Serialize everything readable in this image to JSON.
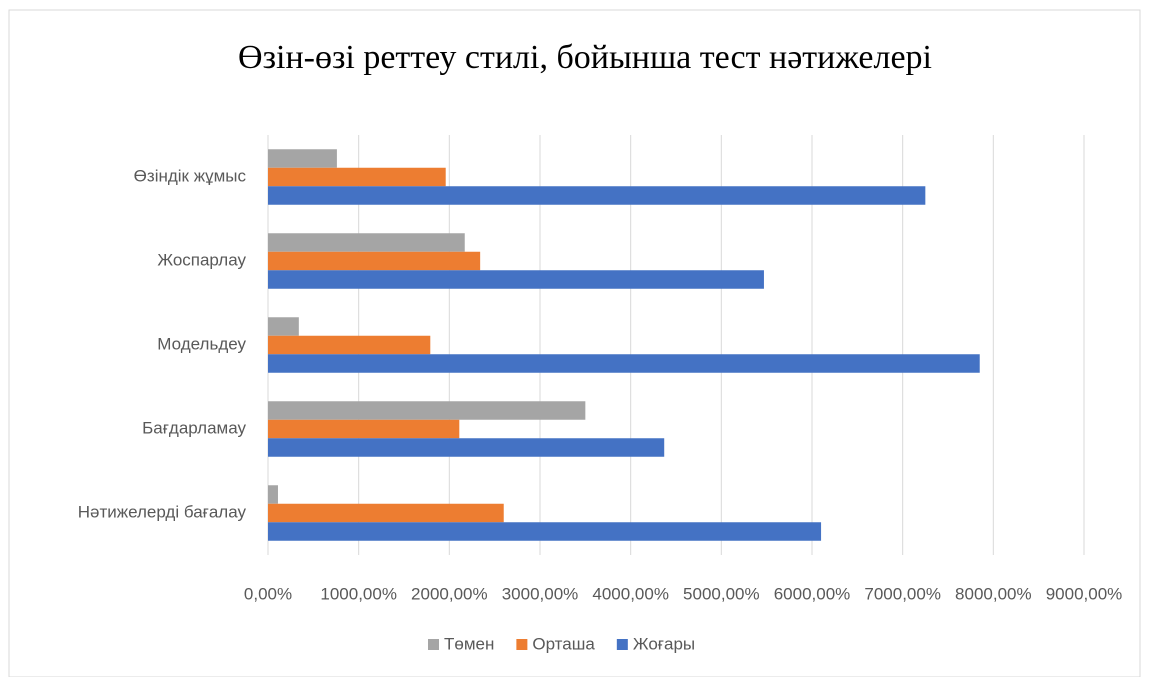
{
  "chart_data": {
    "type": "barh",
    "title": "Өзін-өзі реттеу стилі,  бойынша тест нәтижелері",
    "categories": [
      "Өзіндік жұмыс",
      "Жоспарлау",
      "Модельдеу",
      "Бағдарламау",
      "Нәтижелерді бағалау"
    ],
    "series": [
      {
        "name": "Төмен",
        "color": "#a5a5a5",
        "values": [
          760,
          2170,
          340,
          3500,
          110
        ]
      },
      {
        "name": "Орташа",
        "color": "#ed7d31",
        "values": [
          1960,
          2340,
          1790,
          2110,
          2600
        ]
      },
      {
        "name": "Жоғары",
        "color": "#4472c4",
        "values": [
          7250,
          5470,
          7850,
          4370,
          6100
        ]
      }
    ],
    "xlim": [
      0,
      9000
    ],
    "xticks": [
      {
        "value": 0,
        "label": "0,00%"
      },
      {
        "value": 1000,
        "label": "1000,00%"
      },
      {
        "value": 2000,
        "label": "2000,00%"
      },
      {
        "value": 3000,
        "label": "3000,00%"
      },
      {
        "value": 4000,
        "label": "4000,00%"
      },
      {
        "value": 5000,
        "label": "5000,00%"
      },
      {
        "value": 6000,
        "label": "6000,00%"
      },
      {
        "value": 7000,
        "label": "7000,00%"
      },
      {
        "value": 8000,
        "label": "8000,00%"
      },
      {
        "value": 9000,
        "label": "9000,00%"
      }
    ],
    "grid": true,
    "legend": "bottom"
  }
}
